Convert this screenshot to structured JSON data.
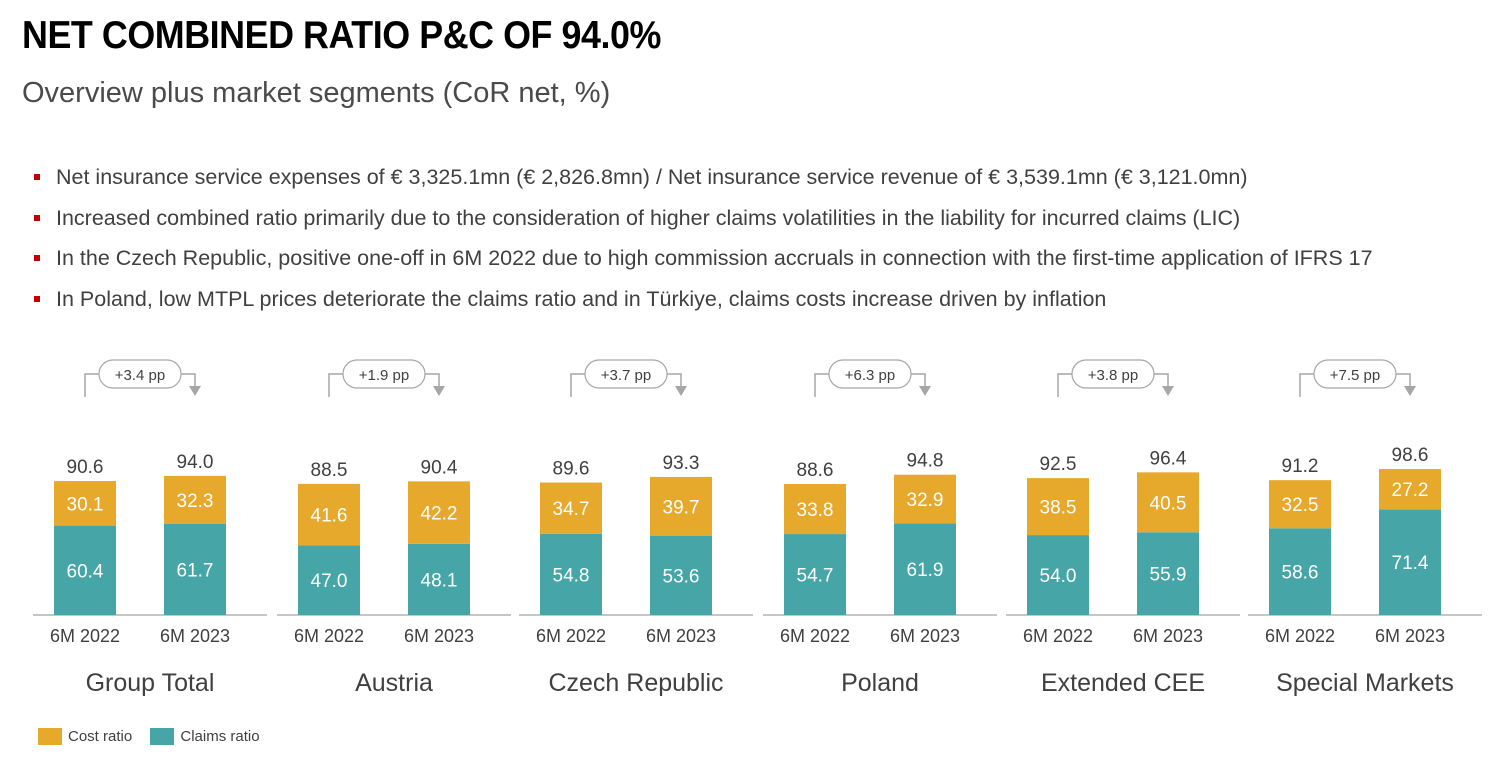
{
  "header": {
    "title": "NET COMBINED RATIO P&C OF 94.0%",
    "subtitle": "Overview plus market segments (CoR net, %)"
  },
  "bullets": [
    "Net insurance service expenses of € 3,325.1mn (€ 2,826.8mn) / Net insurance service revenue of € 3,539.1mn (€ 3,121.0mn)",
    "Increased combined ratio primarily due to the consideration of higher claims volatilities in the liability for incurred claims (LIC)",
    "In the Czech Republic, positive one-off in 6M 2022 due to high commission accruals in connection with the first-time application of IFRS 17",
    "In Poland, low MTPL prices deteriorate the claims ratio and in Türkiye, claims costs increase driven by inflation"
  ],
  "legend": {
    "cost_label": "Cost ratio",
    "claims_label": "Claims ratio"
  },
  "colors": {
    "cost": "#E6A92B",
    "claims": "#46A6A7",
    "bullet": "#C00000",
    "text": "#404040"
  },
  "chart_data": {
    "type": "bar",
    "stacked": true,
    "periods": [
      "6M 2022",
      "6M 2023"
    ],
    "series": [
      {
        "name": "Claims ratio",
        "color": "#46A6A7"
      },
      {
        "name": "Cost ratio",
        "color": "#E6A92B"
      }
    ],
    "ylim": [
      0,
      100
    ],
    "groups": [
      {
        "name": "Group Total",
        "change": "+3.4 pp",
        "bars": [
          {
            "period": "6M 2022",
            "claims": 60.4,
            "cost": 30.1,
            "total": "90.6"
          },
          {
            "period": "6M 2023",
            "claims": 61.7,
            "cost": 32.3,
            "total": "94.0"
          }
        ]
      },
      {
        "name": "Austria",
        "change": "+1.9 pp",
        "bars": [
          {
            "period": "6M 2022",
            "claims": 47.0,
            "cost": 41.6,
            "total": "88.5"
          },
          {
            "period": "6M 2023",
            "claims": 48.1,
            "cost": 42.2,
            "total": "90.4"
          }
        ]
      },
      {
        "name": "Czech Republic",
        "change": "+3.7 pp",
        "bars": [
          {
            "period": "6M 2022",
            "claims": 54.8,
            "cost": 34.7,
            "total": "89.6"
          },
          {
            "period": "6M 2023",
            "claims": 53.6,
            "cost": 39.7,
            "total": "93.3"
          }
        ]
      },
      {
        "name": "Poland",
        "change": "+6.3 pp",
        "bars": [
          {
            "period": "6M 2022",
            "claims": 54.7,
            "cost": 33.8,
            "total": "88.6"
          },
          {
            "period": "6M 2023",
            "claims": 61.9,
            "cost": 32.9,
            "total": "94.8"
          }
        ]
      },
      {
        "name": "Extended CEE",
        "change": "+3.8 pp",
        "bars": [
          {
            "period": "6M 2022",
            "claims": 54.0,
            "cost": 38.5,
            "total": "92.5"
          },
          {
            "period": "6M 2023",
            "claims": 55.9,
            "cost": 40.5,
            "total": "96.4"
          }
        ]
      },
      {
        "name": "Special Markets",
        "change": "+7.5 pp",
        "bars": [
          {
            "period": "6M 2022",
            "claims": 58.6,
            "cost": 32.5,
            "total": "91.2"
          },
          {
            "period": "6M 2023",
            "claims": 71.4,
            "cost": 27.2,
            "total": "98.6"
          }
        ]
      }
    ]
  }
}
